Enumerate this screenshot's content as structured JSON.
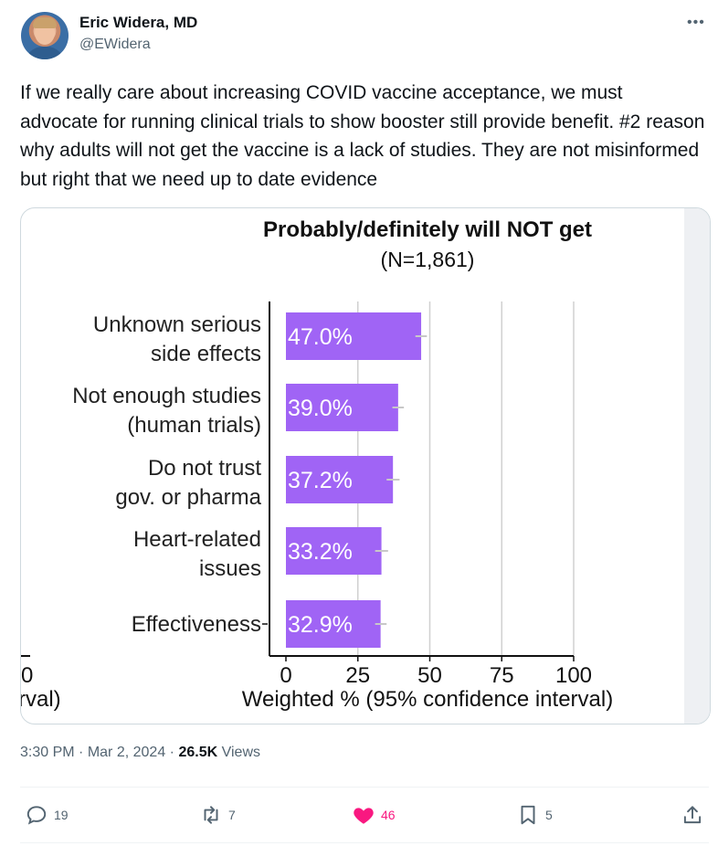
{
  "author": {
    "name": "Eric Widera, MD",
    "handle": "@EWidera"
  },
  "tweet_text": "If we really care about increasing COVID vaccine acceptance, we must advocate for running clinical trials to show booster still provide benefit. #2 reason why adults will not get the vaccine is a lack of studies. They are not misinformed but right that we need up to date evidence",
  "meta": {
    "time": "3:30 PM",
    "date": "Mar 2, 2024",
    "views_count": "26.5K",
    "views_label": "Views"
  },
  "actions": {
    "replies": "19",
    "reposts": "7",
    "likes": "46",
    "bookmarks": "5"
  },
  "colors": {
    "bar": "#a064f5",
    "like": "#f91880",
    "muted": "#536471"
  },
  "chart_data": {
    "type": "bar",
    "orientation": "horizontal",
    "title": "Probably/definitely will NOT get",
    "subtitle": "(N=1,861)",
    "xlabel": "Weighted % (95% confidence interval)",
    "xlim": [
      0,
      100
    ],
    "xticks": [
      "0",
      "25",
      "50",
      "75",
      "100"
    ],
    "grid": true,
    "categories": [
      [
        "Unknown serious",
        "side effects"
      ],
      [
        "Not enough studies",
        "(human trials)"
      ],
      [
        "Do not trust",
        "gov. or pharma"
      ],
      [
        "Heart-related",
        "issues"
      ],
      [
        "Effectiveness"
      ]
    ],
    "values": [
      47.0,
      39.0,
      37.2,
      33.2,
      32.9
    ],
    "error": [
      [
        45.0,
        49.0
      ],
      [
        37.0,
        41.0
      ],
      [
        35.0,
        39.5
      ],
      [
        31.0,
        35.5
      ],
      [
        31.0,
        35.0
      ]
    ],
    "data_labels": [
      "47.0%",
      "39.0%",
      "37.2%",
      "33.2%",
      "32.9%"
    ],
    "cropped_fragments": {
      "tick": "0",
      "axis_label": "rval)"
    }
  }
}
